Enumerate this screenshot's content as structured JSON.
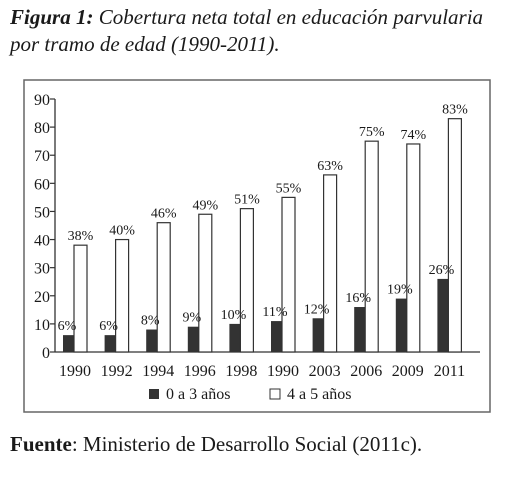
{
  "caption": {
    "label": "Figura 1:",
    "text": "Cobertura neta total en educación parvularia por tramo de edad (1990-2011)."
  },
  "source": {
    "label": "Fuente",
    "text": ": Ministerio de Desarrollo Social (2011c)."
  },
  "chart_data": {
    "type": "bar",
    "categories": [
      "1990",
      "1992",
      "1994",
      "1996",
      "1998",
      "1990",
      "2003",
      "2006",
      "2009",
      "2011"
    ],
    "series": [
      {
        "name": "0 a 3 años",
        "color": "#333333",
        "values": [
          6,
          6,
          8,
          9,
          10,
          11,
          12,
          16,
          19,
          26
        ],
        "labels": [
          "6%",
          "6%",
          "8%",
          "9%",
          "10%",
          "11%",
          "12%",
          "16%",
          "19%",
          "26%"
        ]
      },
      {
        "name": "4 a 5 años",
        "color": "#ffffff",
        "values": [
          38,
          40,
          46,
          49,
          51,
          55,
          63,
          75,
          74,
          83
        ],
        "labels": [
          "38%",
          "40%",
          "46%",
          "49%",
          "51%",
          "55%",
          "63%",
          "75%",
          "74%",
          "83%"
        ]
      }
    ],
    "yticks": [
      "0",
      "10",
      "20",
      "30",
      "40",
      "50",
      "60",
      "70",
      "80",
      "90"
    ],
    "ylim": [
      0,
      90
    ],
    "grid": false,
    "legend_position": "bottom"
  }
}
